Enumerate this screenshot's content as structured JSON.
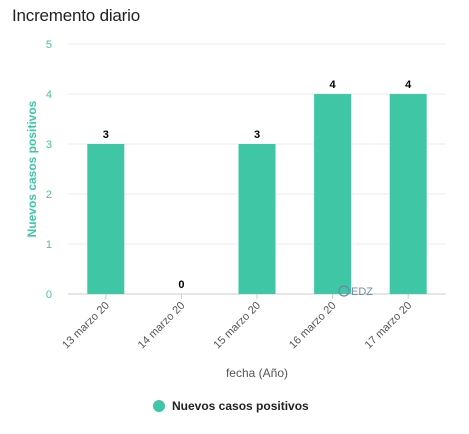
{
  "chart_data": {
    "type": "bar",
    "title": "Incremento diario",
    "categories": [
      "13 marzo 20",
      "14 marzo 20",
      "15 marzo 20",
      "16 marzo 20",
      "17 marzo 20"
    ],
    "series": [
      {
        "name": "Nuevos casos positivos",
        "values": [
          3,
          0,
          3,
          4,
          4
        ]
      }
    ],
    "xlabel": "fecha (Año)",
    "ylabel": "Nuevos casos positivos",
    "ylim": [
      0,
      5
    ],
    "yticks": [
      0,
      1,
      2,
      3,
      4,
      5
    ],
    "grid": true,
    "legend": "bottom-center",
    "bar_color": "#3fc6a5",
    "watermark": "EDZ"
  }
}
